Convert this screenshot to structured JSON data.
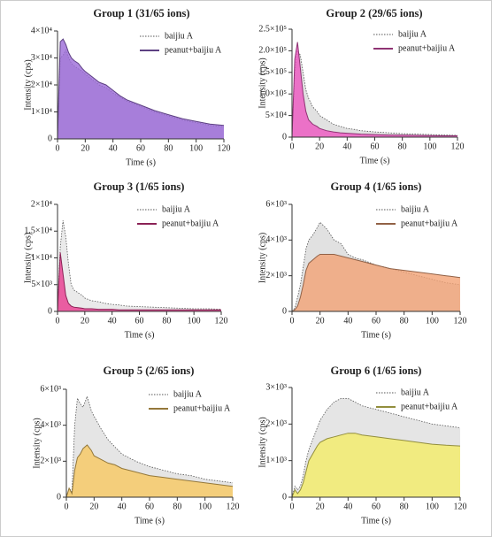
{
  "chart_data": [
    {
      "type": "area",
      "title": "Group 1 (31/65 ions)",
      "xlabel": "Time (s)",
      "ylabel": "Intensity (cps)",
      "x": [
        0,
        2,
        4,
        6,
        8,
        10,
        12,
        15,
        18,
        20,
        25,
        30,
        35,
        40,
        45,
        50,
        60,
        70,
        80,
        90,
        100,
        110,
        120
      ],
      "xlim": [
        0,
        120
      ],
      "xticks": [
        0,
        20,
        40,
        60,
        80,
        100,
        120
      ],
      "ylim": [
        0,
        40000
      ],
      "yticks": [
        0,
        {
          "value": 10000,
          "label": "1×10⁴"
        },
        {
          "value": 20000,
          "label": "2×10⁴"
        },
        {
          "value": 30000,
          "label": "3×10⁴"
        },
        {
          "value": 40000,
          "label": "4×10⁴"
        }
      ],
      "series": [
        {
          "name": "baijiu A",
          "color": "#cfc6dc",
          "values": [
            0,
            30000,
            31000,
            33000,
            30000,
            28000,
            27000,
            26000,
            25000,
            24000,
            22000,
            20000,
            19000,
            17000,
            15500,
            14000,
            12000,
            10000,
            8500,
            7000,
            6000,
            5000,
            4500
          ]
        },
        {
          "name": "peanut+baijiu A",
          "color": "#9b6ad8",
          "values": [
            0,
            36000,
            37000,
            35000,
            32000,
            30000,
            29000,
            28000,
            26000,
            25000,
            23000,
            21000,
            20000,
            18000,
            16000,
            14500,
            12500,
            10500,
            9000,
            7500,
            6500,
            5500,
            5000
          ]
        }
      ]
    },
    {
      "type": "area",
      "title": "Group 2 (29/65 ions)",
      "xlabel": "Time (s)",
      "ylabel": "Intensity (cps)",
      "x": [
        0,
        2,
        4,
        6,
        8,
        10,
        12,
        15,
        18,
        20,
        25,
        30,
        35,
        40,
        45,
        50,
        60,
        70,
        80,
        90,
        100,
        110,
        120
      ],
      "xlim": [
        0,
        120
      ],
      "xticks": [
        0,
        20,
        40,
        60,
        80,
        100,
        120
      ],
      "ylim": [
        0,
        250000
      ],
      "yticks": [
        0,
        {
          "value": 50000,
          "label": "5×10⁴"
        },
        {
          "value": 100000,
          "label": "1.0×10⁵"
        },
        {
          "value": 150000,
          "label": "1.5×10⁵"
        },
        {
          "value": 200000,
          "label": "2.0×10⁵"
        },
        {
          "value": 250000,
          "label": "2.5×10⁵"
        }
      ],
      "series": [
        {
          "name": "baijiu A",
          "color": "#dcdcdc",
          "values": [
            0,
            150000,
            200000,
            190000,
            150000,
            110000,
            90000,
            70000,
            60000,
            50000,
            40000,
            30000,
            25000,
            20000,
            18000,
            15000,
            12000,
            10000,
            8000,
            7000,
            6000,
            5000,
            4000
          ]
        },
        {
          "name": "peanut+baijiu A",
          "color": "#ee55c0",
          "values": [
            0,
            180000,
            220000,
            160000,
            100000,
            60000,
            40000,
            30000,
            25000,
            20000,
            15000,
            12000,
            10000,
            9000,
            8000,
            7000,
            6000,
            5000,
            4500,
            4000,
            3500,
            3000,
            3000
          ]
        }
      ]
    },
    {
      "type": "area",
      "title": "Group 3 (1/65 ions)",
      "xlabel": "Time (s)",
      "ylabel": "Intensity (cps)",
      "x": [
        0,
        2,
        4,
        6,
        8,
        10,
        12,
        15,
        18,
        20,
        25,
        30,
        35,
        40,
        45,
        50,
        60,
        70,
        80,
        90,
        100,
        110,
        120
      ],
      "xlim": [
        0,
        120
      ],
      "xticks": [
        0,
        20,
        40,
        60,
        80,
        100,
        120
      ],
      "ylim": [
        0,
        20000
      ],
      "yticks": [
        0,
        {
          "value": 5000,
          "label": "5×10³"
        },
        {
          "value": 10000,
          "label": "1×10⁴"
        },
        {
          "value": 15000,
          "label": "1.5×10⁴"
        },
        {
          "value": 20000,
          "label": "2×10⁴"
        }
      ],
      "series": [
        {
          "name": "baijiu A",
          "color": "#e6e6e6",
          "values": [
            0,
            12000,
            17000,
            14000,
            9000,
            5000,
            4000,
            3500,
            3000,
            2500,
            2000,
            1800,
            1500,
            1300,
            1200,
            1000,
            900,
            800,
            700,
            600,
            500,
            500,
            400
          ]
        },
        {
          "name": "peanut+baijiu A",
          "color": "#e8398f",
          "values": [
            0,
            11000,
            7000,
            3000,
            1500,
            1000,
            800,
            700,
            600,
            500,
            500,
            400,
            400,
            400,
            300,
            300,
            300,
            300,
            300,
            300,
            300,
            300,
            300
          ]
        }
      ]
    },
    {
      "type": "area",
      "title": "Group 4 (1/65 ions)",
      "xlabel": "Time (s)",
      "ylabel": "Intensity (cps)",
      "x": [
        0,
        2,
        4,
        6,
        8,
        10,
        12,
        15,
        18,
        20,
        25,
        30,
        35,
        40,
        45,
        50,
        60,
        70,
        80,
        90,
        100,
        110,
        120
      ],
      "xlim": [
        0,
        120
      ],
      "xticks": [
        0,
        20,
        40,
        60,
        80,
        100,
        120
      ],
      "ylim": [
        0,
        6000
      ],
      "yticks": [
        0,
        {
          "value": 2000,
          "label": "2×10³"
        },
        {
          "value": 4000,
          "label": "4×10³"
        },
        {
          "value": 6000,
          "label": "6×10³"
        }
      ],
      "series": [
        {
          "name": "baijiu A",
          "color": "#dcdcdc",
          "values": [
            0,
            200,
            800,
            1500,
            2500,
            3500,
            4000,
            4300,
            4700,
            5000,
            4600,
            4000,
            3800,
            3200,
            3000,
            2900,
            2600,
            2400,
            2200,
            2000,
            1800,
            1600,
            1500
          ]
        },
        {
          "name": "peanut+baijiu A",
          "color": "#f2a275",
          "values": [
            0,
            100,
            300,
            800,
            1500,
            2300,
            2700,
            2900,
            3100,
            3200,
            3200,
            3200,
            3100,
            3000,
            2900,
            2800,
            2600,
            2400,
            2300,
            2200,
            2100,
            2000,
            1900
          ]
        }
      ]
    },
    {
      "type": "area",
      "title": "Group 5 (2/65 ions)",
      "xlabel": "Time (s)",
      "ylabel": "Intensity (cps)",
      "x": [
        0,
        2,
        4,
        6,
        8,
        10,
        12,
        15,
        18,
        20,
        25,
        30,
        35,
        40,
        45,
        50,
        60,
        70,
        80,
        90,
        100,
        110,
        120
      ],
      "xlim": [
        0,
        120
      ],
      "xticks": [
        0,
        20,
        40,
        60,
        80,
        100,
        120
      ],
      "ylim": [
        0,
        6000
      ],
      "yticks": [
        0,
        {
          "value": 2000,
          "label": "2×10³"
        },
        {
          "value": 4000,
          "label": "4×10³"
        },
        {
          "value": 6000,
          "label": "6×10³"
        }
      ],
      "series": [
        {
          "name": "baijiu A",
          "color": "#e0e0e0",
          "values": [
            0,
            500,
            300,
            4000,
            5500,
            5200,
            5000,
            5600,
            4800,
            4500,
            3800,
            3200,
            2800,
            2400,
            2200,
            2000,
            1700,
            1500,
            1300,
            1200,
            1000,
            900,
            800
          ]
        },
        {
          "name": "peanut+baijiu A",
          "color": "#f7c860",
          "values": [
            0,
            500,
            200,
            1500,
            2200,
            2400,
            2700,
            2900,
            2600,
            2300,
            2100,
            1900,
            1800,
            1600,
            1500,
            1400,
            1200,
            1100,
            1000,
            900,
            800,
            700,
            600
          ]
        }
      ]
    },
    {
      "type": "area",
      "title": "Group 6 (1/65 ions)",
      "xlabel": "Time (s)",
      "ylabel": "Intensity (cps)",
      "x": [
        0,
        2,
        4,
        6,
        8,
        10,
        12,
        15,
        18,
        20,
        25,
        30,
        35,
        40,
        45,
        50,
        60,
        70,
        80,
        90,
        100,
        110,
        120
      ],
      "xlim": [
        0,
        120
      ],
      "xticks": [
        0,
        20,
        40,
        60,
        80,
        100,
        120
      ],
      "ylim": [
        0,
        3000
      ],
      "yticks": [
        0,
        {
          "value": 1000,
          "label": "1×10³"
        },
        {
          "value": 2000,
          "label": "2×10³"
        },
        {
          "value": 3000,
          "label": "3×10³"
        }
      ],
      "series": [
        {
          "name": "baijiu A",
          "color": "#e0e0e0",
          "values": [
            0,
            300,
            200,
            300,
            600,
            1000,
            1300,
            1600,
            1900,
            2100,
            2400,
            2600,
            2700,
            2700,
            2600,
            2500,
            2400,
            2300,
            2200,
            2100,
            2000,
            1950,
            1900
          ]
        },
        {
          "name": "peanut+baijiu A",
          "color": "#f4ec66",
          "values": [
            0,
            200,
            100,
            200,
            400,
            700,
            1000,
            1200,
            1400,
            1500,
            1600,
            1650,
            1700,
            1750,
            1750,
            1700,
            1650,
            1600,
            1550,
            1500,
            1450,
            1420,
            1400
          ]
        }
      ]
    }
  ]
}
